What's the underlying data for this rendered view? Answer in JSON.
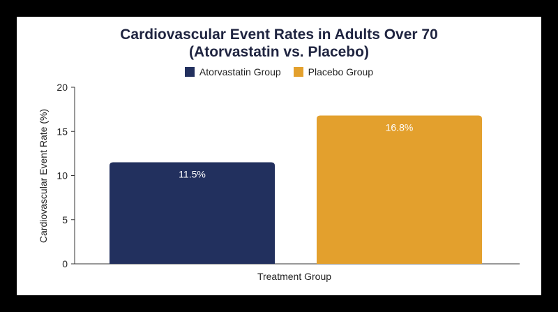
{
  "chart_data": {
    "type": "bar",
    "title_line1": "Cardiovascular Event Rates in Adults Over 70",
    "title_line2": "(Atorvastatin vs. Placebo)",
    "xlabel": "Treatment Group",
    "ylabel": "Cardiovascular Event Rate (%)",
    "ylim": [
      0,
      20
    ],
    "yticks": [
      0,
      5,
      10,
      15,
      20
    ],
    "grid": false,
    "legend_position": "top-center",
    "series": [
      {
        "name": "Atorvastatin Group",
        "value": 11.5,
        "label": "11.5%",
        "color": "#22305e"
      },
      {
        "name": "Placebo Group",
        "value": 16.8,
        "label": "16.8%",
        "color": "#e3a02d"
      }
    ]
  }
}
